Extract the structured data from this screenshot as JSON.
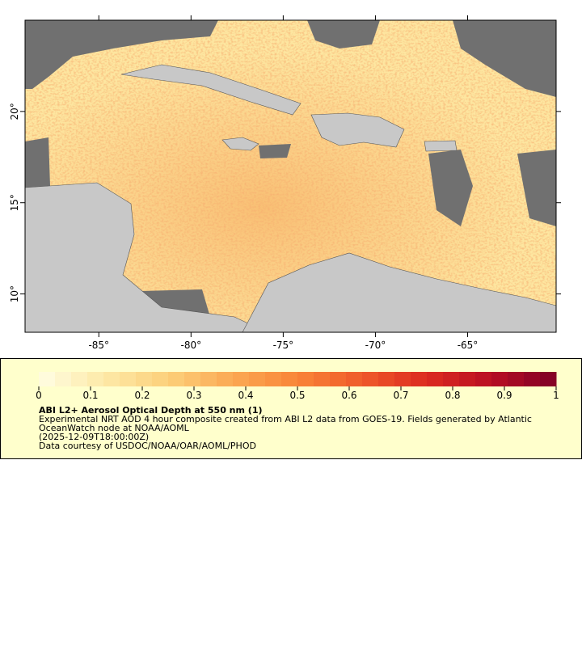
{
  "map": {
    "xlim": [
      -89,
      -60.2
    ],
    "ylim": [
      7.9,
      25
    ],
    "xticks": [
      {
        "value": -85,
        "label": "-85°"
      },
      {
        "value": -80,
        "label": "-80°"
      },
      {
        "value": -75,
        "label": "-75°"
      },
      {
        "value": -70,
        "label": "-70°"
      },
      {
        "value": -65,
        "label": "-65°"
      }
    ],
    "yticks": [
      {
        "value": 10,
        "label": "10°"
      },
      {
        "value": 15,
        "label": "15°"
      },
      {
        "value": 20,
        "label": "20°"
      }
    ]
  },
  "colorbar": {
    "range": [
      0,
      1
    ],
    "ticks": [
      0,
      0.1,
      0.2,
      0.3,
      0.4,
      0.5,
      0.6,
      0.7,
      0.8,
      0.9,
      1
    ],
    "palette": [
      "#fffde3",
      "#fde9a8",
      "#fcd07a",
      "#fba853",
      "#f98438",
      "#ef5a2a",
      "#dc2a20",
      "#b80e22",
      "#7f0026"
    ]
  },
  "legend": {
    "title": "ABI L2+ Aerosol Optical Depth at 550 nm (1)",
    "description": [
      "Experimental NRT AOD 4 hour composite created from ABI L2 data from GOES-19. Fields generated by Atlantic",
      "OceanWatch node at NOAA/AOML"
    ],
    "time": "(2025-12-09T18:00:00Z)",
    "credit": "Data courtesy of USDOC/NOAA/OAR/AOML/PHOD"
  }
}
